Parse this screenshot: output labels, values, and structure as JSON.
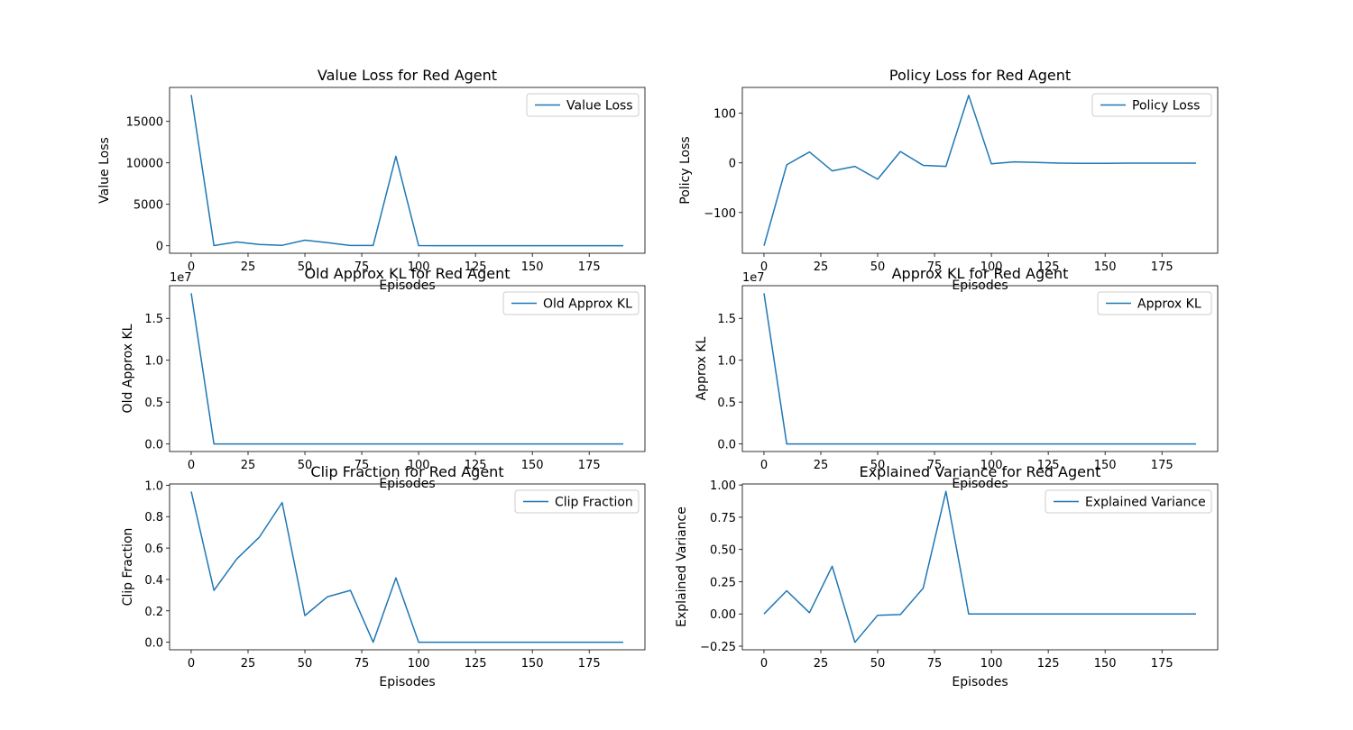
{
  "chart_data": [
    {
      "type": "line",
      "title": "Value Loss for Red Agent",
      "xlabel": "Episodes",
      "ylabel": "Value Loss",
      "xlim": [
        -9.5,
        199.5
      ],
      "ylim": [
        -900,
        19100
      ],
      "xticks": [
        0,
        25,
        50,
        75,
        100,
        125,
        150,
        175
      ],
      "yticks": [
        0,
        5000,
        10000,
        15000
      ],
      "ytick_labels": [
        "0",
        "5000",
        "10000",
        "15000"
      ],
      "offset_text": "",
      "legend_position": "top-right",
      "grid": false,
      "color": "#1f77b4",
      "series": [
        {
          "name": "Value Loss",
          "x": [
            0,
            10,
            20,
            30,
            40,
            50,
            60,
            70,
            80,
            90,
            100,
            110,
            120,
            130,
            140,
            150,
            160,
            170,
            180,
            190
          ],
          "y": [
            18200,
            20,
            460,
            170,
            60,
            680,
            380,
            40,
            40,
            10800,
            20,
            15,
            15,
            15,
            15,
            15,
            15,
            15,
            15,
            15
          ]
        }
      ]
    },
    {
      "type": "line",
      "title": "Policy Loss for Red Agent",
      "xlabel": "Episodes",
      "ylabel": "Policy Loss",
      "xlim": [
        -9.5,
        199.5
      ],
      "ylim": [
        -182,
        152
      ],
      "xticks": [
        0,
        25,
        50,
        75,
        100,
        125,
        150,
        175
      ],
      "yticks": [
        -100,
        0,
        100
      ],
      "ytick_labels": [
        "−100",
        "0",
        "100"
      ],
      "offset_text": "",
      "legend_position": "top-right",
      "grid": false,
      "color": "#1f77b4",
      "series": [
        {
          "name": "Policy Loss",
          "x": [
            0,
            10,
            20,
            30,
            40,
            50,
            60,
            70,
            80,
            90,
            100,
            110,
            120,
            130,
            140,
            150,
            160,
            170,
            180,
            190
          ],
          "y": [
            -167,
            -4,
            22,
            -16,
            -7,
            -33,
            23,
            -5,
            -7,
            136,
            -2,
            2,
            1,
            -0.5,
            -1,
            -1,
            -0.5,
            -0.5,
            -0.5,
            -0.5
          ]
        }
      ]
    },
    {
      "type": "line",
      "title": "Old Approx KL for Red Agent",
      "xlabel": "Episodes",
      "ylabel": "Old Approx KL",
      "xlim": [
        -9.5,
        199.5
      ],
      "ylim": [
        -0.09,
        1.89
      ],
      "xticks": [
        0,
        25,
        50,
        75,
        100,
        125,
        150,
        175
      ],
      "yticks": [
        0,
        0.5,
        1.0,
        1.5
      ],
      "ytick_labels": [
        "0.0",
        "0.5",
        "1.0",
        "1.5"
      ],
      "offset_text": "1e7",
      "legend_position": "top-right",
      "grid": false,
      "color": "#1f77b4",
      "series": [
        {
          "name": "Old Approx KL",
          "x": [
            0,
            10,
            20,
            30,
            40,
            50,
            60,
            70,
            80,
            90,
            100,
            110,
            120,
            130,
            140,
            150,
            160,
            170,
            180,
            190
          ],
          "y": [
            1.8,
            0,
            0,
            0,
            0,
            0,
            0,
            0,
            0,
            0,
            0,
            0,
            0,
            0,
            0,
            0,
            0,
            0,
            0,
            0
          ]
        }
      ]
    },
    {
      "type": "line",
      "title": "Approx KL for Red Agent",
      "xlabel": "Episodes",
      "ylabel": "Approx KL",
      "xlim": [
        -9.5,
        199.5
      ],
      "ylim": [
        -0.09,
        1.89
      ],
      "xticks": [
        0,
        25,
        50,
        75,
        100,
        125,
        150,
        175
      ],
      "yticks": [
        0,
        0.5,
        1.0,
        1.5
      ],
      "ytick_labels": [
        "0.0",
        "0.5",
        "1.0",
        "1.5"
      ],
      "offset_text": "1e7",
      "legend_position": "top-right",
      "grid": false,
      "color": "#1f77b4",
      "series": [
        {
          "name": "Approx KL",
          "x": [
            0,
            10,
            20,
            30,
            40,
            50,
            60,
            70,
            80,
            90,
            100,
            110,
            120,
            130,
            140,
            150,
            160,
            170,
            180,
            190
          ],
          "y": [
            1.8,
            0,
            0,
            0,
            0,
            0,
            0,
            0,
            0,
            0,
            0,
            0,
            0,
            0,
            0,
            0,
            0,
            0,
            0,
            0
          ]
        }
      ]
    },
    {
      "type": "line",
      "title": "Clip Fraction for Red Agent",
      "xlabel": "Episodes",
      "ylabel": "Clip Fraction",
      "xlim": [
        -9.5,
        199.5
      ],
      "ylim": [
        -0.048,
        1.008
      ],
      "xticks": [
        0,
        25,
        50,
        75,
        100,
        125,
        150,
        175
      ],
      "yticks": [
        0,
        0.2,
        0.4,
        0.6,
        0.8,
        1.0
      ],
      "ytick_labels": [
        "0.0",
        "0.2",
        "0.4",
        "0.6",
        "0.8",
        "1.0"
      ],
      "offset_text": "",
      "legend_position": "top-right",
      "grid": false,
      "color": "#1f77b4",
      "series": [
        {
          "name": "Clip Fraction",
          "x": [
            0,
            10,
            20,
            30,
            40,
            50,
            60,
            70,
            80,
            90,
            100,
            110,
            120,
            130,
            140,
            150,
            160,
            170,
            180,
            190
          ],
          "y": [
            0.96,
            0.33,
            0.53,
            0.67,
            0.89,
            0.17,
            0.29,
            0.33,
            0.0,
            0.41,
            0,
            0,
            0,
            0,
            0,
            0,
            0,
            0,
            0,
            0
          ]
        }
      ]
    },
    {
      "type": "line",
      "title": "Explained Variance for Red Agent",
      "xlabel": "Episodes",
      "ylabel": "Explained Variance",
      "xlim": [
        -9.5,
        199.5
      ],
      "ylim": [
        -0.278,
        1.008
      ],
      "xticks": [
        0,
        25,
        50,
        75,
        100,
        125,
        150,
        175
      ],
      "yticks": [
        -0.25,
        0,
        0.25,
        0.5,
        0.75,
        1.0
      ],
      "ytick_labels": [
        "−0.25",
        "0.00",
        "0.25",
        "0.50",
        "0.75",
        "1.00"
      ],
      "offset_text": "",
      "legend_position": "top-right",
      "grid": false,
      "color": "#1f77b4",
      "series": [
        {
          "name": "Explained Variance",
          "x": [
            0,
            10,
            20,
            30,
            40,
            50,
            60,
            70,
            80,
            90,
            100,
            110,
            120,
            130,
            140,
            150,
            160,
            170,
            180,
            190
          ],
          "y": [
            0,
            0.18,
            0.01,
            0.37,
            -0.22,
            -0.01,
            -0.005,
            0.2,
            0.95,
            0,
            0,
            0,
            0,
            0,
            0,
            0,
            0,
            0,
            0,
            0
          ]
        }
      ]
    }
  ]
}
